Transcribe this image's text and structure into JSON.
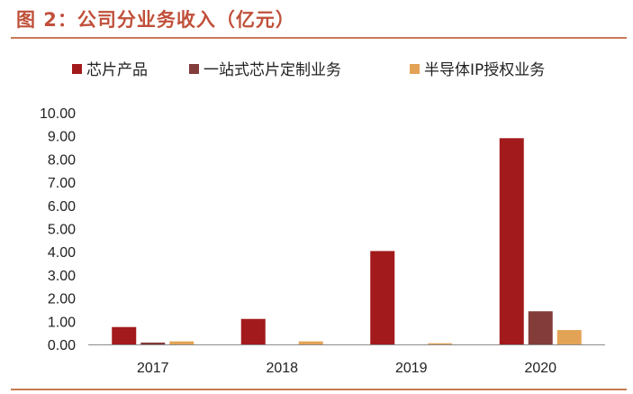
{
  "header": {
    "title": "图 2：公司分业务收入（亿元）"
  },
  "chart_data": {
    "type": "bar",
    "title": "",
    "xlabel": "",
    "ylabel": "",
    "categories": [
      "2017",
      "2018",
      "2019",
      "2020"
    ],
    "ylim": [
      0,
      10
    ],
    "yticks": [
      "0.00",
      "1.00",
      "2.00",
      "3.00",
      "4.00",
      "5.00",
      "6.00",
      "7.00",
      "8.00",
      "9.00",
      "10.00"
    ],
    "grid": false,
    "legend_position": "top",
    "series": [
      {
        "name": "芯片产品",
        "color": "#a31a1c",
        "values": [
          0.75,
          1.1,
          4.03,
          8.9
        ]
      },
      {
        "name": "一站式芯片定制业务",
        "color": "#833c3a",
        "values": [
          0.08,
          0,
          0,
          1.43
        ]
      },
      {
        "name": "半导体IP授权业务",
        "color": "#e3a356",
        "values": [
          0.13,
          0.13,
          0.05,
          0.62
        ]
      }
    ]
  }
}
